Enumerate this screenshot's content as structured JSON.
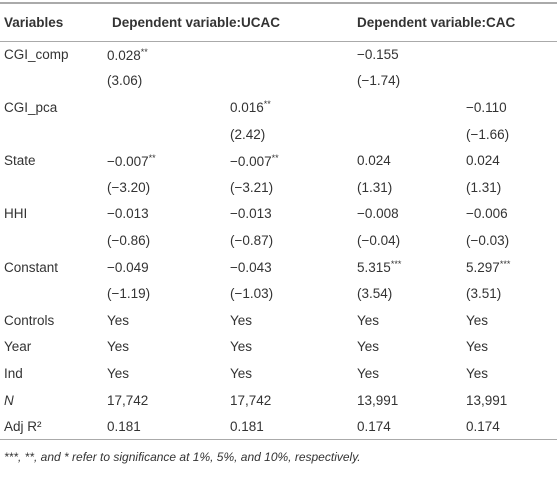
{
  "table": {
    "header": [
      "Variables",
      "Dependent variable:UCAC",
      "Dependent variable:CAC"
    ],
    "rows": [
      [
        "CGI_comp",
        "0.028**",
        null,
        "−0.155",
        null
      ],
      [
        null,
        "(3.06)",
        null,
        "(−1.74)",
        null
      ],
      [
        "CGI_pca",
        null,
        "0.016**",
        null,
        "−0.110"
      ],
      [
        null,
        null,
        "(2.42)",
        null,
        "(−1.66)"
      ],
      [
        "State",
        "−0.007**",
        "−0.007**",
        "0.024",
        "0.024"
      ],
      [
        null,
        "(−3.20)",
        "(−3.21)",
        "(1.31)",
        "(1.31)"
      ],
      [
        "HHI",
        "−0.013",
        "−0.013",
        "−0.008",
        "−0.006"
      ],
      [
        null,
        "(−0.86)",
        "(−0.87)",
        "(−0.04)",
        "(−0.03)"
      ],
      [
        "Constant",
        "−0.049",
        "−0.043",
        "5.315***",
        "5.297***"
      ],
      [
        null,
        "(−1.19)",
        "(−1.03)",
        "(3.54)",
        "(3.51)"
      ],
      [
        "Controls",
        "Yes",
        "Yes",
        "Yes",
        "Yes"
      ],
      [
        "Year",
        "Yes",
        "Yes",
        "Yes",
        "Yes"
      ],
      [
        "Ind",
        "Yes",
        "Yes",
        "Yes",
        "Yes"
      ],
      [
        "N",
        "17,742",
        "17,742",
        "13,991",
        "13,991"
      ],
      [
        "Adj R²",
        "0.181",
        "0.181",
        "0.174",
        "0.174"
      ]
    ]
  },
  "footnote": "***, **, and * refer to significance at 1%, 5%, and 10%, respectively."
}
